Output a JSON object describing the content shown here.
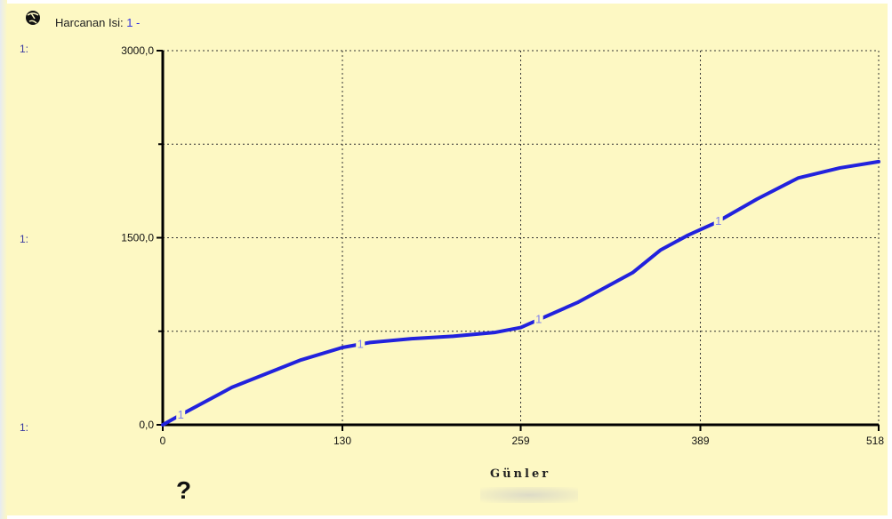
{
  "legend": {
    "label": "Harcanan Isi:",
    "series_key": "1 -"
  },
  "scale_labels": {
    "top": "1:",
    "mid": "1:",
    "bottom": "1:"
  },
  "help_mark": "?",
  "colors": {
    "background": "#fdf8c3",
    "series": "#2222dd",
    "axis": "#000000"
  },
  "icons": {
    "legend": "globe-icon"
  },
  "chart_data": {
    "type": "line",
    "xlabel": "Günler",
    "ylabel": "",
    "xlim": [
      0,
      518
    ],
    "ylim": [
      0,
      3000
    ],
    "x_ticks": [
      0,
      130,
      259,
      389,
      518
    ],
    "x_tick_labels": [
      "0",
      "130",
      "259",
      "389",
      "518"
    ],
    "y_ticks": [
      0,
      1500,
      3000
    ],
    "y_tick_labels": [
      "0,0",
      "1500,0",
      "3000,0"
    ],
    "grid": true,
    "series": [
      {
        "name": "1",
        "marker_label": "1",
        "x": [
          0,
          13,
          50,
          100,
          130,
          150,
          180,
          210,
          240,
          259,
          300,
          340,
          360,
          380,
          400,
          430,
          460,
          490,
          518
        ],
        "y": [
          0,
          80,
          300,
          520,
          620,
          660,
          690,
          710,
          740,
          780,
          980,
          1220,
          1400,
          1520,
          1620,
          1810,
          1980,
          2060,
          2110
        ],
        "marker_x": [
          13,
          143,
          272,
          402
        ]
      }
    ]
  }
}
